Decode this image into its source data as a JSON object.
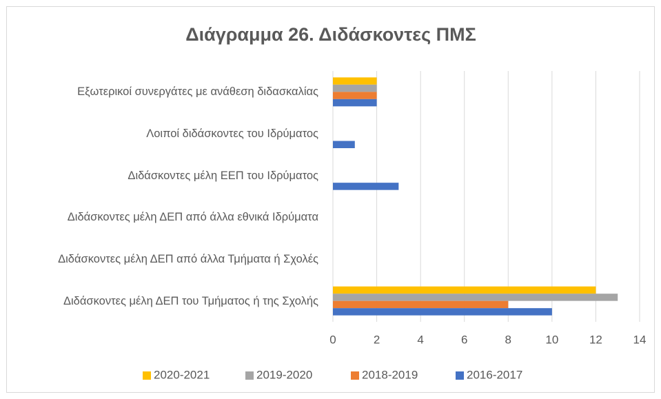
{
  "chart_data": {
    "type": "hbar",
    "title": "Διάγραμμα 26. Διδάσκοντες ΠΜΣ",
    "categories": [
      "Εξωτερικοί συνεργάτες με ανάθεση διδασκαλίας",
      "Λοιποί διδάσκοντες του Ιδρύματος",
      "Διδάσκοντες μέλη ΕΕΠ του Ιδρύματος",
      "Διδάσκοντες μέλη ΔΕΠ από άλλα εθνικά Ιδρύματα",
      "Διδάσκοντες μέλη ΔΕΠ από άλλα Τμήματα ή Σχολές",
      "Διδάσκοντες μέλη ΔΕΠ του Τμήματος ή της Σχολής"
    ],
    "series": [
      {
        "name": "2020-2021",
        "color": "#ffc000",
        "values": [
          2,
          0,
          0,
          0,
          0,
          12
        ]
      },
      {
        "name": "2019-2020",
        "color": "#a5a5a5",
        "values": [
          2,
          0,
          0,
          0,
          0,
          13
        ]
      },
      {
        "name": "2018-2019",
        "color": "#ed7d31",
        "values": [
          2,
          0,
          0,
          0,
          0,
          8
        ]
      },
      {
        "name": "2016-2017",
        "color": "#4472c4",
        "values": [
          2,
          1,
          3,
          0,
          0,
          10
        ]
      }
    ],
    "xlim": [
      0,
      14
    ],
    "xticks": [
      0,
      2,
      4,
      6,
      8,
      10,
      12,
      14
    ],
    "grid": true,
    "legend": "bottom"
  }
}
